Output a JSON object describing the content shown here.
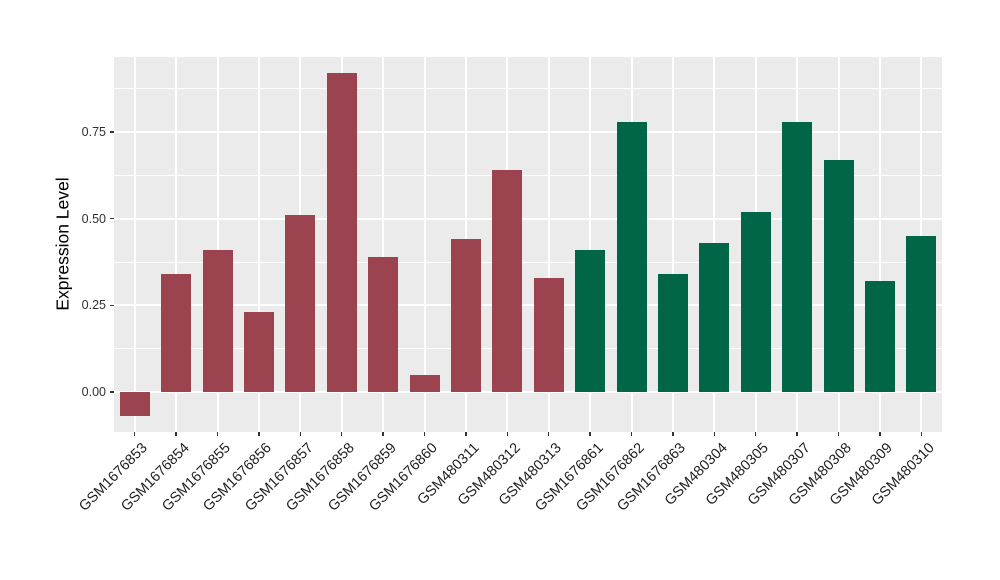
{
  "chart_data": {
    "type": "bar",
    "title": "",
    "xlabel": "",
    "ylabel": "Expression Level",
    "categories": [
      "GSM1676853",
      "GSM1676854",
      "GSM1676855",
      "GSM1676856",
      "GSM1676857",
      "GSM1676858",
      "GSM1676859",
      "GSM1676860",
      "GSM480311",
      "GSM480312",
      "GSM480313",
      "GSM1676861",
      "GSM1676862",
      "GSM1676863",
      "GSM480304",
      "GSM480305",
      "GSM480307",
      "GSM480308",
      "GSM480309",
      "GSM480310"
    ],
    "values": [
      -0.07,
      0.34,
      0.41,
      0.23,
      0.51,
      0.92,
      0.39,
      0.05,
      0.44,
      0.64,
      0.33,
      0.41,
      0.78,
      0.34,
      0.43,
      0.52,
      0.78,
      0.67,
      0.32,
      0.45
    ],
    "group_of_bar": [
      "group1",
      "group1",
      "group1",
      "group1",
      "group1",
      "group1",
      "group1",
      "group1",
      "group1",
      "group1",
      "group1",
      "group2",
      "group2",
      "group2",
      "group2",
      "group2",
      "group2",
      "group2",
      "group2",
      "group2"
    ],
    "group_colors": {
      "group1": "#9B4450",
      "group2": "#006647"
    },
    "ylim": [
      -0.115,
      0.966
    ],
    "yticks": [
      0.0,
      0.25,
      0.5,
      0.75
    ],
    "ytick_labels": [
      "0.00",
      "0.25",
      "0.50",
      "0.75"
    ],
    "grid": {
      "on": true,
      "panel_background": "#EBEBEB",
      "gridline_color": "#FFFFFF"
    },
    "legend": "none"
  }
}
